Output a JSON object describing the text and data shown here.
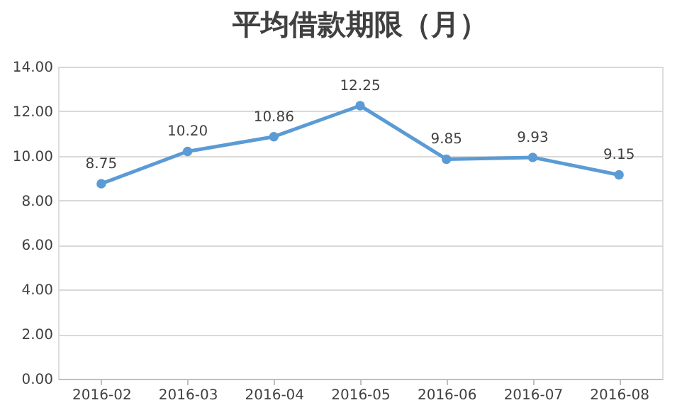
{
  "chart_data": {
    "type": "line",
    "title": "平均借款期限（月）",
    "categories": [
      "2016-02",
      "2016-03",
      "2016-04",
      "2016-05",
      "2016-06",
      "2016-07",
      "2016-08"
    ],
    "series": [
      {
        "color": "#5b9bd5",
        "values": [
          8.75,
          10.2,
          10.86,
          12.25,
          9.85,
          9.93,
          9.15
        ]
      }
    ],
    "ylim": [
      0,
      14
    ],
    "yticks": [
      {
        "value": 0,
        "label": "0.00"
      },
      {
        "value": 2,
        "label": "2.00"
      },
      {
        "value": 4,
        "label": "4.00"
      },
      {
        "value": 6,
        "label": "6.00"
      },
      {
        "value": 8,
        "label": "8.00"
      },
      {
        "value": 10,
        "label": "10.00"
      },
      {
        "value": 12,
        "label": "12.00"
      },
      {
        "value": 14,
        "label": "14.00"
      }
    ],
    "value_labels": [
      "8.75",
      "10.20",
      "10.86",
      "12.25",
      "9.85",
      "9.93",
      "9.15"
    ],
    "grid": "y",
    "marker": "circle",
    "line_style": "solid"
  }
}
